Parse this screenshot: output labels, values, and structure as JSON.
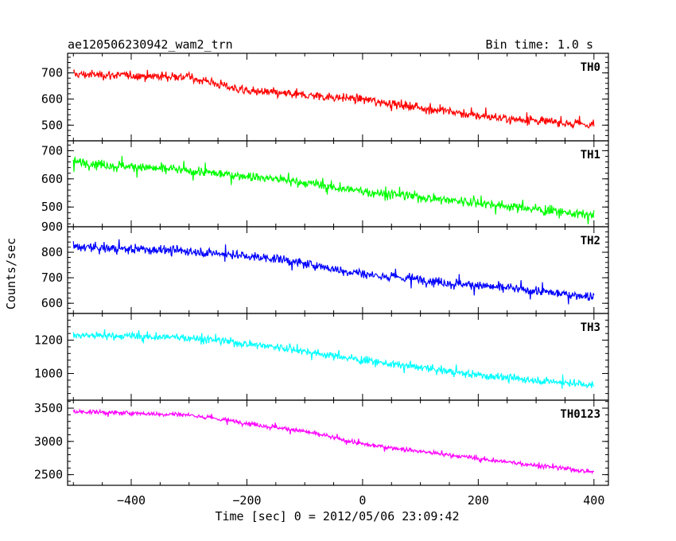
{
  "chart_data": {
    "type": "line",
    "title_left": "ae120506230942_wam2_trn",
    "title_right": "Bin time: 1.0 s",
    "xlabel": "Time [sec] 0 = 2012/05/06 23:09:42",
    "ylabel": "Counts/sec",
    "xlim": [
      -510,
      425
    ],
    "x_ticks": [
      -400,
      -200,
      0,
      200,
      400
    ],
    "x_tick_labels": [
      "−400",
      "−200",
      "0",
      "200",
      "400"
    ],
    "x_data_range": [
      -500,
      400
    ],
    "grid": false,
    "panels": [
      {
        "name": "TH0",
        "color": "#ff0000",
        "ylim": [
          440,
          775
        ],
        "yticks": [
          500,
          600,
          700
        ],
        "trend": [
          [
            -500,
            695
          ],
          [
            -300,
            685
          ],
          [
            -200,
            630
          ],
          [
            0,
            600
          ],
          [
            200,
            535
          ],
          [
            400,
            500
          ]
        ],
        "noise": 28,
        "line_width": 1.2
      },
      {
        "name": "TH1",
        "color": "#00ff00",
        "ylim": [
          430,
          735
        ],
        "yticks": [
          500,
          600,
          700
        ],
        "trend": [
          [
            -500,
            660
          ],
          [
            -300,
            628
          ],
          [
            -150,
            600
          ],
          [
            0,
            555
          ],
          [
            200,
            515
          ],
          [
            400,
            470
          ]
        ],
        "noise": 28,
        "line_width": 1.2
      },
      {
        "name": "TH2",
        "color": "#0000ff",
        "ylim": [
          560,
          900
        ],
        "yticks": [
          600,
          700,
          800,
          900
        ],
        "trend": [
          [
            -500,
            820
          ],
          [
            -300,
            805
          ],
          [
            -150,
            775
          ],
          [
            0,
            715
          ],
          [
            200,
            670
          ],
          [
            400,
            625
          ]
        ],
        "noise": 30,
        "line_width": 1.2
      },
      {
        "name": "TH3",
        "color": "#00ffff",
        "ylim": [
          840,
          1360
        ],
        "yticks": [
          1000,
          1200
        ],
        "trend": [
          [
            -500,
            1230
          ],
          [
            -300,
            1215
          ],
          [
            -150,
            1160
          ],
          [
            0,
            1080
          ],
          [
            200,
            990
          ],
          [
            400,
            930
          ]
        ],
        "noise": 38,
        "line_width": 1.2
      },
      {
        "name": "TH0123",
        "color": "#ff00ff",
        "ylim": [
          2340,
          3620
        ],
        "yticks": [
          2500,
          3000,
          3500
        ],
        "trend": [
          [
            -500,
            3450
          ],
          [
            -300,
            3400
          ],
          [
            -100,
            3150
          ],
          [
            0,
            2960
          ],
          [
            200,
            2740
          ],
          [
            400,
            2540
          ]
        ],
        "noise": 55,
        "line_width": 1.2
      }
    ]
  }
}
